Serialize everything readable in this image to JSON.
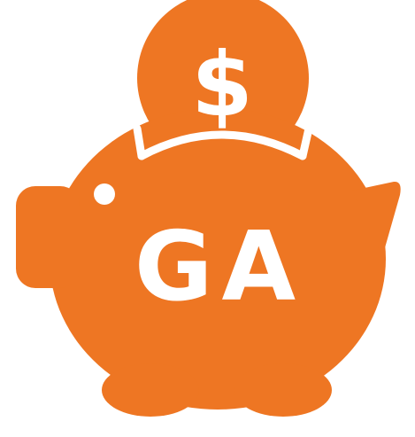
{
  "logo": {
    "coin_symbol": "$",
    "monogram": "GA",
    "colors": {
      "brand_orange": "#EE7623",
      "background": "#FFFFFF",
      "foreground_on_orange": "#FFFFFF"
    },
    "icon": "piggy-bank-icon"
  }
}
